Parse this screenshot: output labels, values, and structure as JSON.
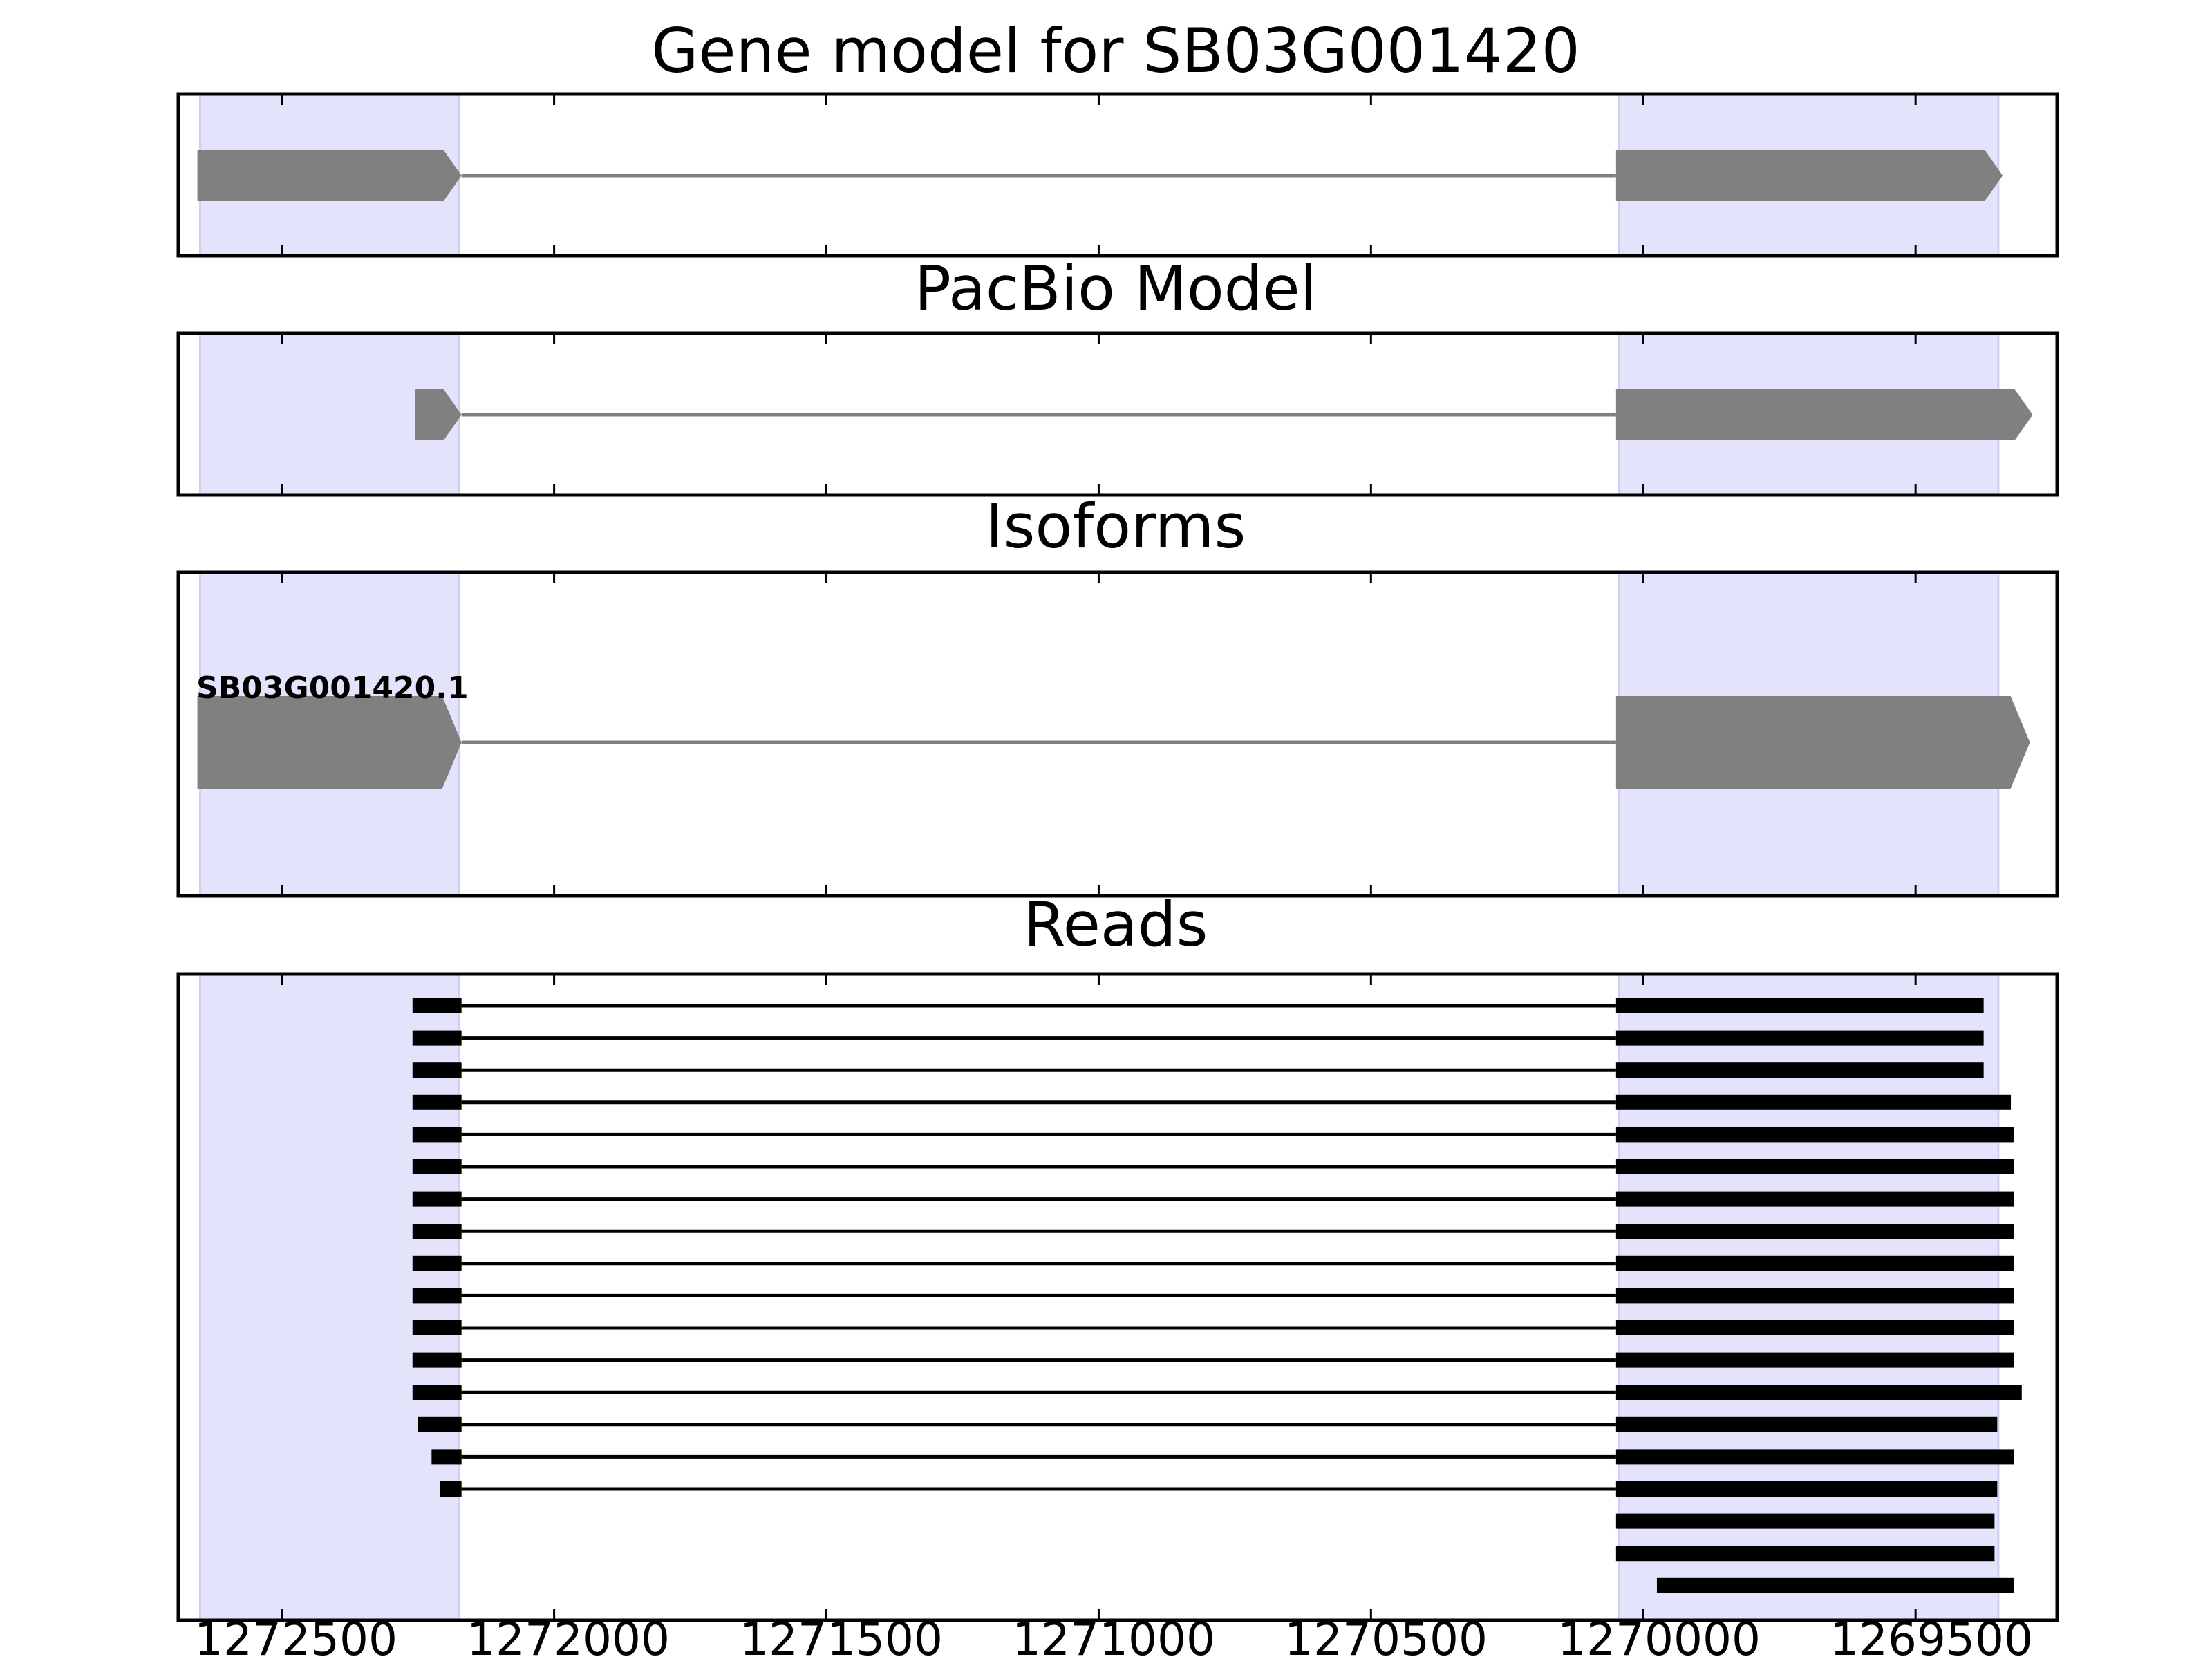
{
  "colors": {
    "exon_highlight": "#e3e3fb",
    "gene_feature": "#808080",
    "read": "#000000",
    "frame": "#000000"
  },
  "chart_data": {
    "type": "gene_structure",
    "x_axis": {
      "reversed": true,
      "xlim": [
        1272690,
        1269240
      ],
      "ticks": [
        1272500,
        1272000,
        1271500,
        1271000,
        1270500,
        1270000,
        1269500
      ],
      "tick_labels": [
        "1272500",
        "1272000",
        "1271500",
        "1271000",
        "1270500",
        "1270000",
        "1269500"
      ]
    },
    "highlight_regions": [
      [
        1272650,
        1272175
      ],
      [
        1270045,
        1269348
      ]
    ],
    "panels": [
      {
        "title": "Gene model for SB03G001420",
        "features": [
          {
            "start": 1272655,
            "end": 1272170,
            "kind": "exon"
          },
          {
            "start": 1270050,
            "end": 1269340,
            "kind": "exon"
          }
        ]
      },
      {
        "title": "PacBio Model",
        "features": [
          {
            "start": 1272255,
            "end": 1272170,
            "kind": "exon"
          },
          {
            "start": 1270050,
            "end": 1269285,
            "kind": "exon"
          }
        ]
      },
      {
        "title": "Isoforms",
        "features": [
          {
            "start": 1272655,
            "end": 1272170,
            "kind": "exon",
            "label": "SB03G001420.1"
          },
          {
            "start": 1270050,
            "end": 1269290,
            "kind": "exon"
          }
        ]
      }
    ],
    "reads": {
      "title": "Reads",
      "rows": [
        [
          [
            1272260,
            1272170
          ],
          [
            1270050,
            1269375
          ]
        ],
        [
          [
            1272260,
            1272170
          ],
          [
            1270050,
            1269375
          ]
        ],
        [
          [
            1272260,
            1272170
          ],
          [
            1270050,
            1269375
          ]
        ],
        [
          [
            1272260,
            1272170
          ],
          [
            1270050,
            1269325
          ]
        ],
        [
          [
            1272260,
            1272170
          ],
          [
            1270050,
            1269320
          ]
        ],
        [
          [
            1272260,
            1272170
          ],
          [
            1270050,
            1269320
          ]
        ],
        [
          [
            1272260,
            1272170
          ],
          [
            1270050,
            1269320
          ]
        ],
        [
          [
            1272260,
            1272170
          ],
          [
            1270050,
            1269320
          ]
        ],
        [
          [
            1272260,
            1272170
          ],
          [
            1270050,
            1269320
          ]
        ],
        [
          [
            1272260,
            1272170
          ],
          [
            1270050,
            1269320
          ]
        ],
        [
          [
            1272260,
            1272170
          ],
          [
            1270050,
            1269320
          ]
        ],
        [
          [
            1272260,
            1272170
          ],
          [
            1270050,
            1269320
          ]
        ],
        [
          [
            1272260,
            1272170
          ],
          [
            1270050,
            1269305
          ]
        ],
        [
          [
            1272250,
            1272170
          ],
          [
            1270050,
            1269350
          ]
        ],
        [
          [
            1272225,
            1272170
          ],
          [
            1270050,
            1269320
          ]
        ],
        [
          [
            1272210,
            1272170
          ],
          [
            1270050,
            1269350
          ]
        ],
        [
          [
            1270050,
            1269355
          ]
        ],
        [
          [
            1270050,
            1269355
          ]
        ],
        [
          [
            1269975,
            1269320
          ]
        ]
      ]
    }
  }
}
